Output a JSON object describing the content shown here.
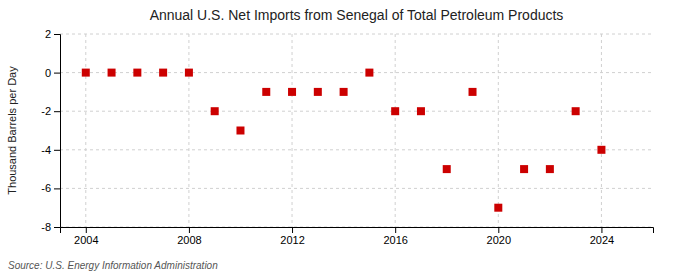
{
  "chart_data": {
    "type": "scatter",
    "title": "Annual U.S. Net Imports from Senegal of Total Petroleum Products",
    "ylabel": "Thousand Barrels per Day",
    "source": "Source: U.S. Energy Information Administration",
    "x": [
      2004,
      2005,
      2006,
      2007,
      2008,
      2009,
      2010,
      2011,
      2012,
      2013,
      2014,
      2015,
      2016,
      2017,
      2018,
      2019,
      2020,
      2021,
      2022,
      2023,
      2024
    ],
    "values": [
      0,
      0,
      0,
      0,
      0,
      -2,
      -3,
      -1,
      -1,
      -1,
      -1,
      0,
      -2,
      -2,
      -5,
      -1,
      -7,
      -5,
      -5,
      -2,
      -4
    ],
    "color": "#cc0000",
    "marker": "square",
    "xlim": [
      2003,
      2026
    ],
    "xticks": [
      2004,
      2008,
      2012,
      2016,
      2020,
      2024
    ],
    "ylim": [
      -8,
      2
    ],
    "yticks": [
      -8,
      -6,
      -4,
      -2,
      0,
      2
    ],
    "grid": true
  }
}
